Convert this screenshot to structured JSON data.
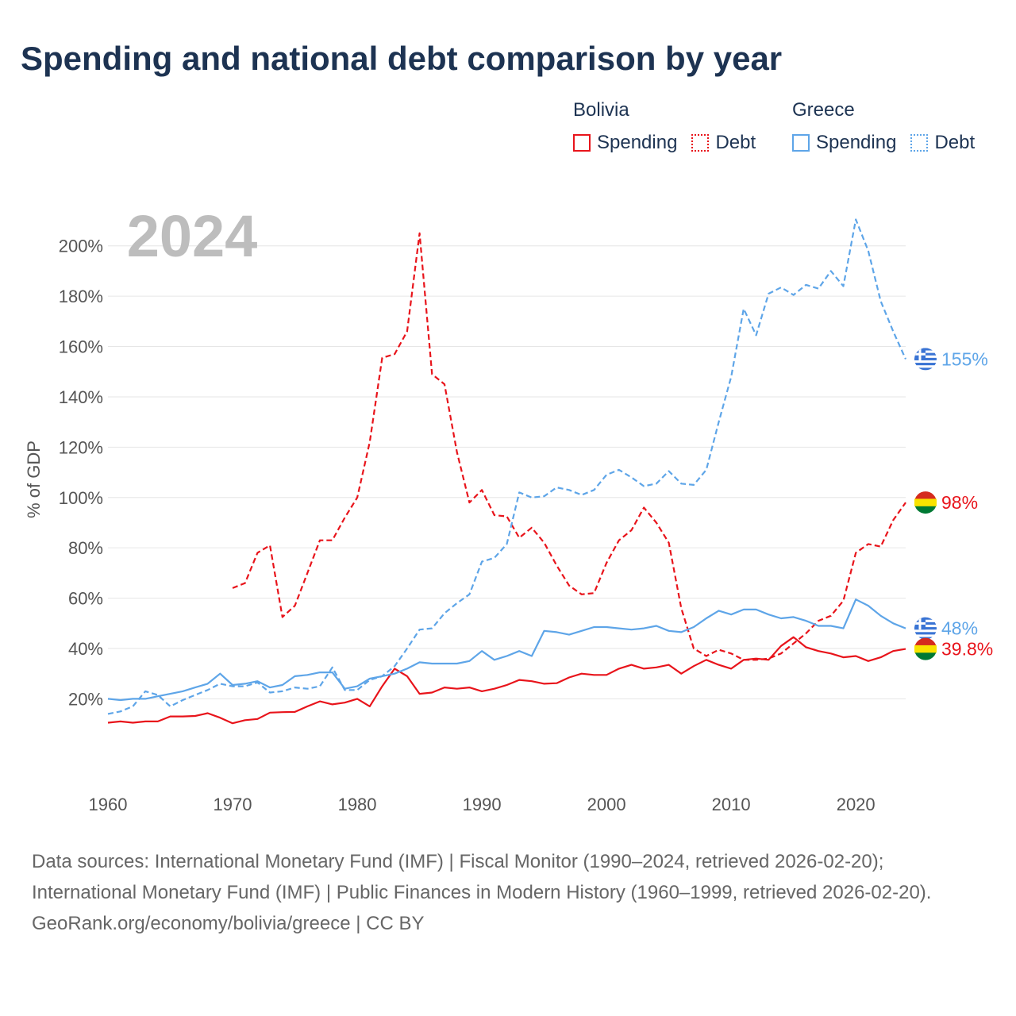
{
  "title": "Spending and national debt comparison by year",
  "legend": {
    "bolivia": {
      "name": "Bolivia",
      "spending": "Spending",
      "debt": "Debt",
      "color": "#e8141b"
    },
    "greece": {
      "name": "Greece",
      "spending": "Spending",
      "debt": "Debt",
      "color": "#5ea5e8"
    }
  },
  "chart_data": {
    "type": "line",
    "title": "Spending and national debt comparison by year",
    "ylabel": "% of GDP",
    "xlabel": "",
    "year_label": "2024",
    "xlim": [
      1960,
      2024
    ],
    "ylim": [
      -7,
      222
    ],
    "x_ticks": [
      1960,
      1970,
      1980,
      1990,
      2000,
      2010,
      2020
    ],
    "y_ticks": [
      20,
      40,
      60,
      80,
      100,
      120,
      140,
      160,
      180,
      200
    ],
    "end_labels": [
      {
        "series": "Greece Debt",
        "text": "155%",
        "value": 155,
        "color": "#5ea5e8",
        "flag": "greece"
      },
      {
        "series": "Bolivia Debt",
        "text": "98%",
        "value": 98,
        "color": "#e8141b",
        "flag": "bolivia"
      },
      {
        "series": "Greece Spending",
        "text": "48%",
        "value": 48,
        "color": "#5ea5e8",
        "flag": "greece"
      },
      {
        "series": "Bolivia Spending",
        "text": "39.8%",
        "value": 39.8,
        "color": "#e8141b",
        "flag": "bolivia"
      }
    ],
    "series": [
      {
        "name": "Bolivia Spending",
        "color": "#e8141b",
        "dash": false,
        "start": 1960,
        "values": [
          10.5,
          11,
          10.5,
          11,
          11,
          13,
          13,
          13.2,
          14.3,
          12.5,
          10.3,
          11.5,
          12,
          14.5,
          14.7,
          14.8,
          17,
          19,
          17.8,
          18.5,
          20,
          17,
          25,
          32,
          29,
          22,
          22.5,
          24.5,
          24,
          24.5,
          23,
          24,
          25.5,
          27.5,
          27,
          26,
          26.2,
          28.5,
          30,
          29.5,
          29.5,
          32,
          33.5,
          32,
          32.5,
          33.5,
          30,
          33,
          35.5,
          33.5,
          32,
          35.5,
          36,
          35.5,
          41,
          44.5,
          40.5,
          39,
          38,
          36.5,
          37,
          35,
          36.5,
          39,
          39.8
        ]
      },
      {
        "name": "Bolivia Debt",
        "color": "#e8141b",
        "dash": true,
        "start": 1970,
        "values": [
          64,
          66,
          78,
          81,
          52.5,
          57,
          70,
          83,
          83,
          92,
          100,
          122,
          155.5,
          157,
          166,
          205,
          149,
          145,
          118,
          98,
          103,
          93,
          92.5,
          84,
          88,
          82,
          73,
          65,
          61.5,
          62,
          74,
          83,
          87,
          96,
          90,
          82,
          56,
          40,
          37,
          39.5,
          38,
          35.5,
          35.5,
          36,
          38,
          42,
          46,
          51,
          53,
          59,
          78,
          81.5,
          80.5,
          91,
          98
        ]
      },
      {
        "name": "Greece Spending",
        "color": "#5ea5e8",
        "dash": false,
        "start": 1960,
        "values": [
          20,
          19.5,
          20,
          20,
          21,
          22,
          23,
          24.5,
          26,
          30,
          25.5,
          26,
          27,
          24.5,
          25.5,
          29,
          29.5,
          30.5,
          30.5,
          24,
          25,
          28,
          29,
          30,
          32,
          34.5,
          34,
          34,
          34,
          35,
          39,
          35.5,
          37,
          39,
          37,
          47,
          46.5,
          45.5,
          47,
          48.5,
          48.5,
          48,
          47.5,
          48,
          49,
          47,
          46.5,
          48.5,
          52,
          55,
          53.5,
          55.5,
          55.5,
          53.5,
          52,
          52.5,
          51,
          49,
          49,
          48,
          59.5,
          57,
          53,
          50,
          48
        ]
      },
      {
        "name": "Greece Debt",
        "color": "#5ea5e8",
        "dash": true,
        "start": 1960,
        "values": [
          14,
          15,
          17,
          23,
          21.5,
          17,
          19.5,
          21.5,
          23.5,
          26,
          25,
          25,
          26.5,
          22.5,
          23,
          24.5,
          24,
          25,
          32.5,
          23.5,
          23.5,
          27.5,
          29,
          33,
          40,
          47.5,
          48,
          54,
          58,
          61.5,
          74.5,
          76,
          81.5,
          102,
          100,
          100.5,
          104,
          103,
          101,
          103,
          109,
          111,
          108,
          104.5,
          105.5,
          110.5,
          105.5,
          105,
          111,
          130,
          148,
          175,
          164.5,
          181,
          183.5,
          180.5,
          184.5,
          183,
          190,
          184,
          210.5,
          198,
          178,
          166,
          155
        ]
      }
    ]
  },
  "footer": {
    "line1": "Data sources: International Monetary Fund (IMF) | Fiscal Monitor (1990–2024, retrieved 2026-02-20); International Monetary Fund (IMF) | Public Finances in Modern History (1960–1999, retrieved 2026-02-20).",
    "line2": "GeoRank.org/economy/bolivia/greece | CC BY"
  }
}
